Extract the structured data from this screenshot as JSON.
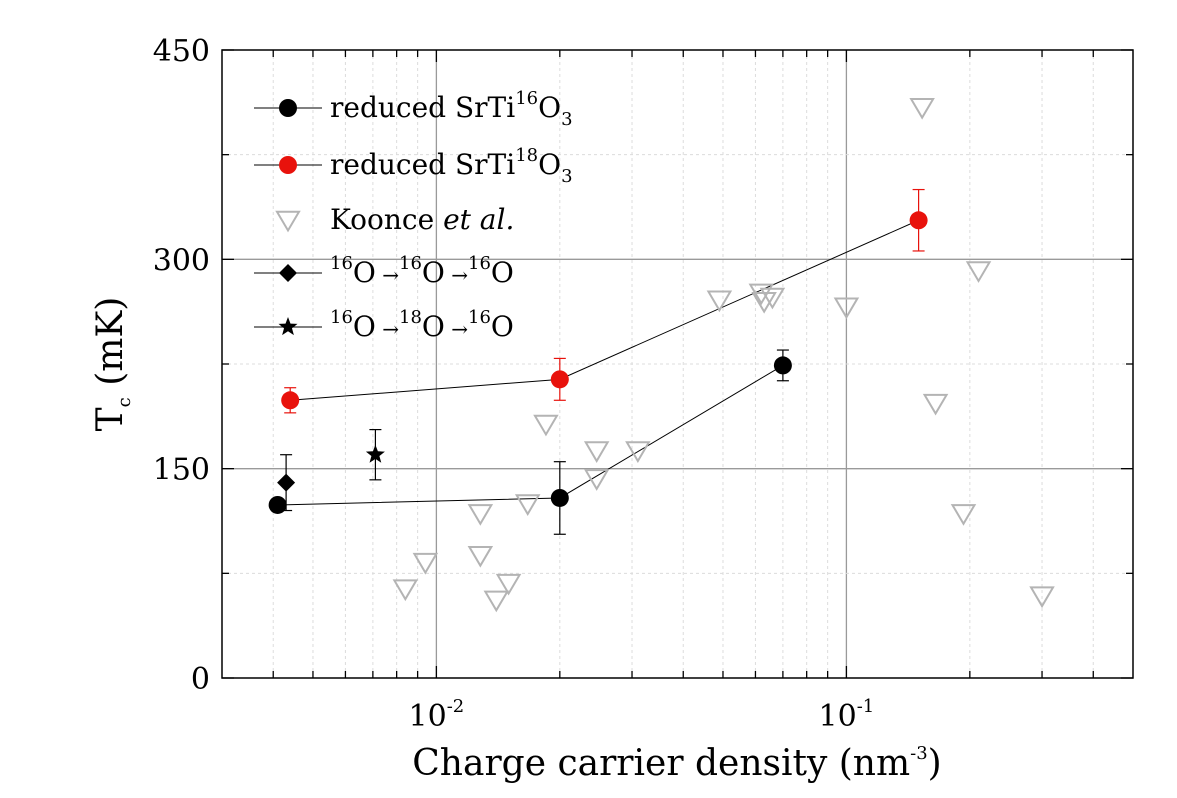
{
  "chart_data": {
    "type": "scatter",
    "xlabel": "Charge carrier density (nm",
    "xlabel_exp": "-3",
    "xlabel_close": ")",
    "ylabel": "T",
    "ylabel_sub": "c",
    "ylabel_unit": "(mK)",
    "x_scale": "log",
    "xlim": [
      0.003,
      0.5
    ],
    "ylim": [
      0,
      450
    ],
    "x_ticks": [
      {
        "value": 0.01,
        "base": "10",
        "exp": "-2"
      },
      {
        "value": 0.1,
        "base": "10",
        "exp": "-1"
      }
    ],
    "y_ticks": [
      0,
      150,
      300,
      450
    ],
    "grid": true,
    "legend_position": "top-left",
    "series": [
      {
        "name": "reduced SrTi",
        "name_sup": "16",
        "name_tail": "O",
        "name_sub": "3",
        "color": "#000000",
        "marker": "circle",
        "connected": true,
        "points": [
          {
            "x": 0.0041,
            "y": 124,
            "err": 0
          },
          {
            "x": 0.02,
            "y": 129,
            "err": 26
          },
          {
            "x": 0.07,
            "y": 224,
            "err": 11
          }
        ]
      },
      {
        "name": "reduced SrTi",
        "name_sup": "18",
        "name_tail": "O",
        "name_sub": "3",
        "color": "#e8120c",
        "marker": "circle",
        "connected": true,
        "points": [
          {
            "x": 0.0044,
            "y": 199,
            "err": 9
          },
          {
            "x": 0.02,
            "y": 214,
            "err": 15
          },
          {
            "x": 0.15,
            "y": 328,
            "err": 22
          }
        ]
      },
      {
        "name": "Koonce",
        "name_italic": "et al.",
        "color": "#b4b4b4",
        "marker": "triangle-down",
        "connected": false,
        "points": [
          {
            "x": 0.0084,
            "y": 64
          },
          {
            "x": 0.0094,
            "y": 83
          },
          {
            "x": 0.0128,
            "y": 118
          },
          {
            "x": 0.0128,
            "y": 88
          },
          {
            "x": 0.014,
            "y": 56
          },
          {
            "x": 0.015,
            "y": 68
          },
          {
            "x": 0.0167,
            "y": 125
          },
          {
            "x": 0.0185,
            "y": 182
          },
          {
            "x": 0.0246,
            "y": 163
          },
          {
            "x": 0.0246,
            "y": 143
          },
          {
            "x": 0.031,
            "y": 163
          },
          {
            "x": 0.049,
            "y": 271
          },
          {
            "x": 0.062,
            "y": 276
          },
          {
            "x": 0.063,
            "y": 270
          },
          {
            "x": 0.066,
            "y": 273
          },
          {
            "x": 0.1,
            "y": 266
          },
          {
            "x": 0.153,
            "y": 409
          },
          {
            "x": 0.165,
            "y": 197
          },
          {
            "x": 0.193,
            "y": 118
          },
          {
            "x": 0.21,
            "y": 292
          },
          {
            "x": 0.3,
            "y": 59
          }
        ]
      },
      {
        "name": "",
        "label_parts": [
          "16",
          "O",
          "16",
          "O",
          "16",
          "O"
        ],
        "color": "#000000",
        "marker": "diamond",
        "connected": false,
        "points": [
          {
            "x": 0.0043,
            "y": 140,
            "err": 20
          }
        ]
      },
      {
        "name": "",
        "label_parts": [
          "16",
          "O",
          "18",
          "O",
          "16",
          "O"
        ],
        "color": "#000000",
        "marker": "star",
        "connected": false,
        "points": [
          {
            "x": 0.0071,
            "y": 160,
            "err": 18
          }
        ]
      }
    ]
  }
}
